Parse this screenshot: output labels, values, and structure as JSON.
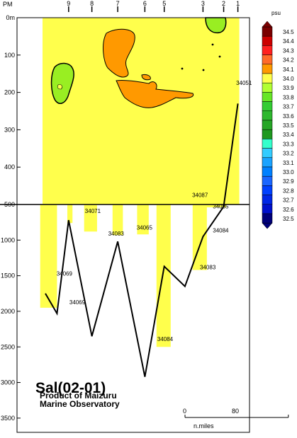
{
  "chart_data": {
    "type": "contour",
    "title": "Sal(02-01)",
    "subtitle_lines": [
      "Product of Maizuru",
      "Marine Observatory"
    ],
    "unit": "psu",
    "pm_label": "PM",
    "y_axis": {
      "upper_ticks": [
        {
          "v": 0,
          "label": "0m"
        },
        {
          "v": 100,
          "label": "100"
        },
        {
          "v": 200,
          "label": "200"
        },
        {
          "v": 300,
          "label": "300"
        },
        {
          "v": 400,
          "label": "400"
        },
        {
          "v": 500,
          "label": "500"
        }
      ],
      "lower_ticks": [
        {
          "v": 1000,
          "label": "1000"
        },
        {
          "v": 1500,
          "label": "1500"
        },
        {
          "v": 2000,
          "label": "2000"
        },
        {
          "v": 2500,
          "label": "2500"
        },
        {
          "v": 3000,
          "label": "3000"
        },
        {
          "v": 3500,
          "label": "3500"
        }
      ],
      "upper_range": [
        0,
        500
      ],
      "lower_range": [
        500,
        3700
      ]
    },
    "x_range_nmi": [
      0,
      158
    ],
    "stations": [
      {
        "label": "9",
        "x": 18
      },
      {
        "label": "8",
        "x": 36
      },
      {
        "label": "7",
        "x": 56
      },
      {
        "label": "6",
        "x": 77
      },
      {
        "label": "5",
        "x": 92
      },
      {
        "label": "3",
        "x": 122
      },
      {
        "label": "2",
        "x": 138
      },
      {
        "label": "1",
        "x": 149
      }
    ],
    "station_labels": [
      {
        "text": "34051",
        "x": 152,
        "depth": 180
      },
      {
        "text": "34087",
        "x": 118,
        "depth": 480
      },
      {
        "text": "34071",
        "x": 35,
        "depth": 620
      },
      {
        "text": "34085",
        "x": 134,
        "depth": 555
      },
      {
        "text": "34083",
        "x": 53,
        "depth": 935
      },
      {
        "text": "34065",
        "x": 75,
        "depth": 855
      },
      {
        "text": "34084",
        "x": 134,
        "depth": 895
      },
      {
        "text": "34069",
        "x": 13,
        "depth": 1500
      },
      {
        "text": "34069",
        "x": 23,
        "depth": 1900
      },
      {
        "text": "34083",
        "x": 124,
        "depth": 1410
      },
      {
        "text": "34084",
        "x": 91,
        "depth": 2420
      }
    ],
    "colorbar": [
      {
        "value": "34.5",
        "color": "#7a0000"
      },
      {
        "value": "34.4",
        "color": "#cc0000"
      },
      {
        "value": "34.3",
        "color": "#ff2020"
      },
      {
        "value": "34.2",
        "color": "#ff6a2a"
      },
      {
        "value": "34.1",
        "color": "#ff9900"
      },
      {
        "value": "34.0",
        "color": "#ffff4c"
      },
      {
        "value": "33.9",
        "color": "#b2ff33"
      },
      {
        "value": "33.8",
        "color": "#66e626"
      },
      {
        "value": "33.7",
        "color": "#33cc33"
      },
      {
        "value": "33.6",
        "color": "#2eb82e"
      },
      {
        "value": "33.5",
        "color": "#26a626"
      },
      {
        "value": "33.4",
        "color": "#1f991f"
      },
      {
        "value": "33.3",
        "color": "#33ffcc"
      },
      {
        "value": "33.2",
        "color": "#33ccff"
      },
      {
        "value": "33.1",
        "color": "#1aa3ff"
      },
      {
        "value": "33.0",
        "color": "#0080ff"
      },
      {
        "value": "32.9",
        "color": "#1a66ff"
      },
      {
        "value": "32.8",
        "color": "#0040ff"
      },
      {
        "value": "32.7",
        "color": "#0026e6"
      },
      {
        "value": "32.6",
        "color": "#0010cc"
      },
      {
        "value": "32.5",
        "color": "#00007a"
      }
    ],
    "colors": {
      "fill_main": "#ffff4c",
      "fill_high": "#ff9900",
      "fill_low": "#99ee22"
    },
    "bottom_profile": [
      {
        "x": 0,
        "depth": 1750
      },
      {
        "x": 9,
        "depth": 2030
      },
      {
        "x": 18,
        "depth": 720
      },
      {
        "x": 36,
        "depth": 2350
      },
      {
        "x": 56,
        "depth": 1020
      },
      {
        "x": 77,
        "depth": 2920
      },
      {
        "x": 92,
        "depth": 1370
      },
      {
        "x": 108,
        "depth": 1650
      },
      {
        "x": 122,
        "depth": 950
      },
      {
        "x": 138,
        "depth": 530
      },
      {
        "x": 149,
        "depth": 230
      }
    ],
    "scale_bar": {
      "start_label": "0",
      "end_label": "80",
      "unit_label": "n.miles",
      "length_nmi": 80
    }
  }
}
